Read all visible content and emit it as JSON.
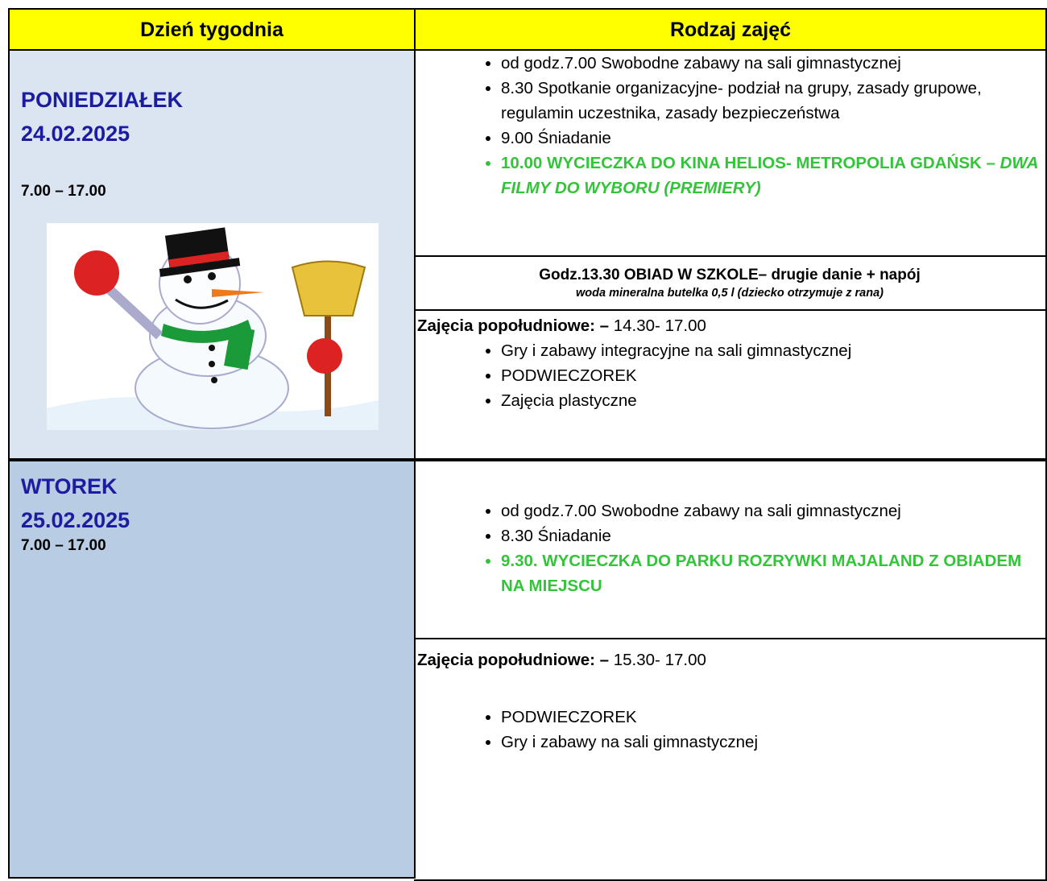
{
  "table": {
    "headers": [
      "Dzień tygodnia",
      "Rodzaj zajęć"
    ],
    "rows": [
      {
        "day": "PONIEDZIAŁEK",
        "date": "24.02.2025",
        "hours": "7.00 – 17.00",
        "morning": [
          " od godz.7.00 Swobodne zabawy na sali gimnastycznej",
          "8.30 Spotkanie organizacyjne- podział na grupy, zasady grupowe, regulamin uczestnika, zasady bezpieczeństwa",
          "9.00 Śniadanie"
        ],
        "trip": [
          "10.00 WYCIECZKA DO KINA HELIOS- METROPOLIA GDAŃSK – ",
          "DWA FILMY DO WYBORU (PREMIERY)"
        ],
        "lunch": "Godz.13.30 OBIAD W SZKOLE– drugie danie + napój",
        "lunch_note": "woda mineralna butelka 0,5 l (dziecko otrzymuje z rana)",
        "afternoon_label": "Zajęcia popołudniowe: –",
        "afternoon_hours": " 14.30- 17.00",
        "afternoon": [
          "Gry i zabawy integracyjne na sali gimnastycznej",
          "PODWIECZOREK",
          "Zajęcia plastyczne"
        ]
      },
      {
        "day": "WTOREK",
        "date": "25.02.2025",
        "hours": "7.00 – 17.00",
        "morning": [
          "od godz.7.00 Swobodne zabawy na sali gimnastycznej",
          "8.30 Śniadanie"
        ],
        "trip": [
          "9.30. WYCIECZKA DO PARKU ROZRYWKI MAJALAND Z OBIADEM NA MIEJSCU"
        ],
        "afternoon_label": "Zajęcia popołudniowe: –",
        "afternoon_hours": " 15.30- 17.00",
        "afternoon": [
          "PODWIECZOREK",
          "Gry i zabawy na sali gimnastycznej"
        ]
      }
    ]
  }
}
